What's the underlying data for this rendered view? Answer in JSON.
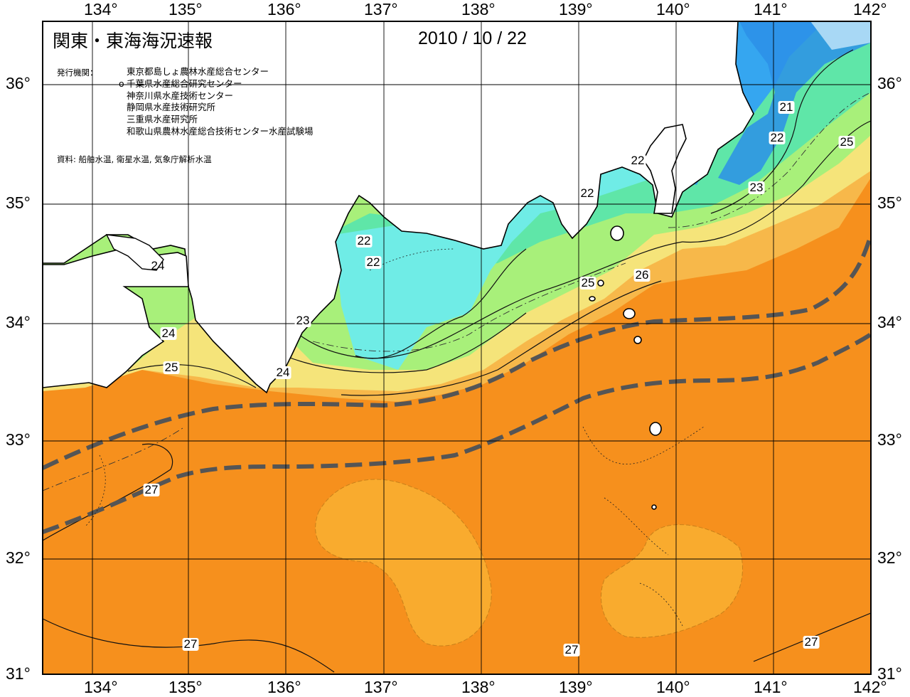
{
  "header": {
    "title": "関東・東海海況速報",
    "date": "2010 / 10 / 22"
  },
  "publishers": {
    "label": "発行機関：",
    "list": [
      "東京都島しょ農林水産総合センター",
      "千葉県水産総合研究センター",
      "神奈川県水産技術センター",
      "静岡県水産技術研究所",
      "三重県水産研究所",
      "和歌山県農林水産総合技術センター水産試験場"
    ],
    "marked_index_mark": "o"
  },
  "data_source": "資料: 船舶水温, 衛星水温, 気象庁解析水温",
  "axes": {
    "longitude_ticks": [
      "134°",
      "135°",
      "136°",
      "137°",
      "138°",
      "139°",
      "140°",
      "141°",
      "142°"
    ],
    "latitude_ticks": [
      "31°",
      "32°",
      "33°",
      "34°",
      "35°",
      "36°"
    ]
  },
  "contour_labels": [
    "21",
    "22",
    "25",
    "22",
    "22",
    "23",
    "22",
    "22",
    "24",
    "24",
    "25",
    "23",
    "24",
    "25",
    "26",
    "27",
    "27",
    "27",
    "27"
  ],
  "colors": {
    "water_26_27": "#f6901d",
    "water_warm_eddy": "#f9ab2e",
    "water_25_26": "#f7b84a",
    "water_24_25": "#f5e47a",
    "water_23_24": "#a8f07a",
    "water_22_23": "#5fe6a8",
    "water_21_22": "#6fece6",
    "water_cold": "#35a6f0",
    "water_coldest": "#2b8fe8",
    "land": "#ffffff",
    "kuroshio_axis": "#555555"
  },
  "legend_symbols": {
    "kuroshio_axis_line": "dashed-thick-grey"
  }
}
